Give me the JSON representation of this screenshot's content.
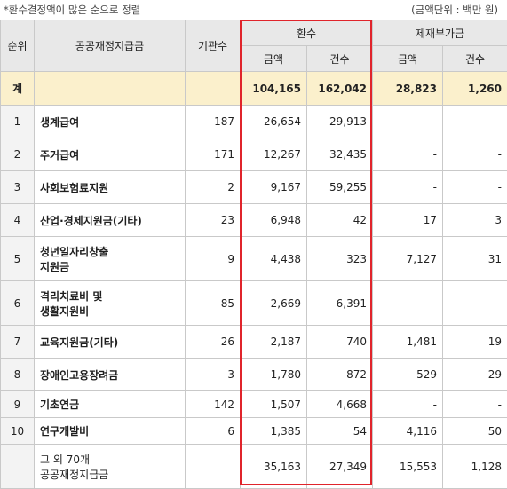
{
  "note": {
    "left": "*환수결정액이 많은 순으로 정렬",
    "right": "(금액단위 : 백만 원)"
  },
  "headers": {
    "rank": "순위",
    "program": "공공재정지급금",
    "agencies": "기관수",
    "refund": "환수",
    "surcharge": "제재부가금",
    "amount": "금액",
    "count": "건수"
  },
  "accent_colors": {
    "highlight_border": "#e0242b",
    "total_row_bg": "#fbf0cc"
  },
  "total": {
    "label": "계",
    "refund_amount": "104,165",
    "refund_count": "162,042",
    "surcharge_amount": "28,823",
    "surcharge_count": "1,260"
  },
  "rows": [
    {
      "rank": "1",
      "name": "생계급여",
      "name2": "",
      "agencies": "187",
      "refund_amount": "26,654",
      "refund_count": "29,913",
      "surcharge_amount": "-",
      "surcharge_count": "-"
    },
    {
      "rank": "2",
      "name": "주거급여",
      "name2": "",
      "agencies": "171",
      "refund_amount": "12,267",
      "refund_count": "32,435",
      "surcharge_amount": "-",
      "surcharge_count": "-"
    },
    {
      "rank": "3",
      "name": "사회보험료지원",
      "name2": "",
      "agencies": "2",
      "refund_amount": "9,167",
      "refund_count": "59,255",
      "surcharge_amount": "-",
      "surcharge_count": "-"
    },
    {
      "rank": "4",
      "name": "산업·경제지원금(기타)",
      "name2": "",
      "agencies": "23",
      "refund_amount": "6,948",
      "refund_count": "42",
      "surcharge_amount": "17",
      "surcharge_count": "3"
    },
    {
      "rank": "5",
      "name": "청년일자리창출",
      "name2": "지원금",
      "agencies": "9",
      "refund_amount": "4,438",
      "refund_count": "323",
      "surcharge_amount": "7,127",
      "surcharge_count": "31"
    },
    {
      "rank": "6",
      "name": "격리치료비 및",
      "name2": "생활지원비",
      "agencies": "85",
      "refund_amount": "2,669",
      "refund_count": "6,391",
      "surcharge_amount": "-",
      "surcharge_count": "-"
    },
    {
      "rank": "7",
      "name": "교육지원금(기타)",
      "name2": "",
      "agencies": "26",
      "refund_amount": "2,187",
      "refund_count": "740",
      "surcharge_amount": "1,481",
      "surcharge_count": "19"
    },
    {
      "rank": "8",
      "name": "장애인고용장려금",
      "name2": "",
      "agencies": "3",
      "refund_amount": "1,780",
      "refund_count": "872",
      "surcharge_amount": "529",
      "surcharge_count": "29"
    },
    {
      "rank": "9",
      "name": "기초연금",
      "name2": "",
      "agencies": "142",
      "refund_amount": "1,507",
      "refund_count": "4,668",
      "surcharge_amount": "-",
      "surcharge_count": "-"
    },
    {
      "rank": "10",
      "name": "연구개발비",
      "name2": "",
      "agencies": "6",
      "refund_amount": "1,385",
      "refund_count": "54",
      "surcharge_amount": "4,116",
      "surcharge_count": "50"
    }
  ],
  "other": {
    "name": "그 외 70개",
    "name2": "공공재정지급금",
    "refund_amount": "35,163",
    "refund_count": "27,349",
    "surcharge_amount": "15,553",
    "surcharge_count": "1,128"
  }
}
